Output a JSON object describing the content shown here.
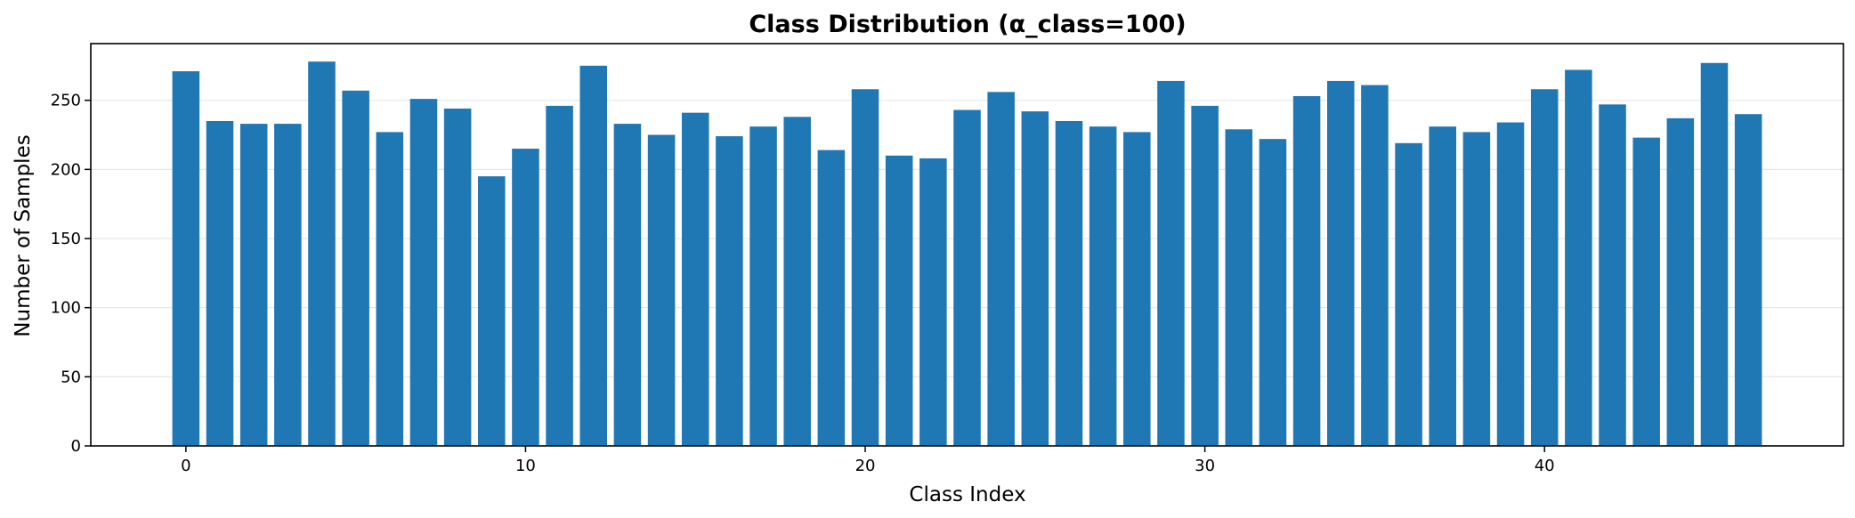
{
  "chart_data": {
    "type": "bar",
    "title": "Class Distribution (α_class=100)",
    "xlabel": "Class Index",
    "ylabel": "Number of Samples",
    "x": [
      0,
      1,
      2,
      3,
      4,
      5,
      6,
      7,
      8,
      9,
      10,
      11,
      12,
      13,
      14,
      15,
      16,
      17,
      18,
      19,
      20,
      21,
      22,
      23,
      24,
      25,
      26,
      27,
      28,
      29,
      30,
      31,
      32,
      33,
      34,
      35,
      36,
      37,
      38,
      39,
      40,
      41,
      42,
      43,
      44,
      45,
      46
    ],
    "values": [
      271,
      235,
      233,
      233,
      278,
      257,
      227,
      251,
      244,
      195,
      215,
      246,
      275,
      233,
      225,
      241,
      224,
      231,
      238,
      214,
      258,
      210,
      208,
      243,
      256,
      242,
      235,
      231,
      227,
      264,
      246,
      229,
      222,
      253,
      264,
      261,
      219,
      231,
      227,
      234,
      258,
      272,
      247,
      223,
      237,
      277,
      240
    ],
    "xlim": [
      -2.8,
      48.8
    ],
    "ylim": [
      0,
      291
    ],
    "xticks": [
      0,
      10,
      20,
      30,
      40
    ],
    "yticks": [
      0,
      50,
      100,
      150,
      200,
      250
    ],
    "grid": "y",
    "bar_color": "#1f77b4"
  }
}
